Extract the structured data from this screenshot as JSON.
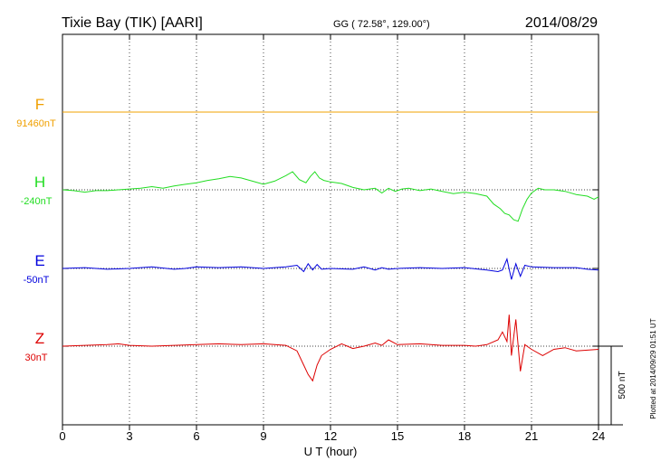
{
  "header": {
    "station": "Tixie Bay (TIK)  [AARI]",
    "coords": "GG ( 72.58°, 129.00°)",
    "date": "2014/08/29"
  },
  "footer": {
    "plotted": "Plotted at 2014/09/29 01:51  UT"
  },
  "chart_data": {
    "type": "line",
    "xlabel": "U T (hour)",
    "xlim": [
      0,
      24
    ],
    "xticks": [
      "0",
      "3",
      "6",
      "9",
      "12",
      "15",
      "18",
      "21",
      "24"
    ],
    "scale_bar": {
      "label": "500 nT",
      "value_nT": 500
    },
    "series": [
      {
        "name": "F",
        "baseline_label": "91460nT",
        "color": "#f0a000",
        "x": [
          0,
          24
        ],
        "y": [
          0,
          0
        ]
      },
      {
        "name": "H",
        "baseline_label": "-240nT",
        "color": "#22dd22",
        "x": [
          0,
          0.5,
          1,
          1.5,
          2,
          2.5,
          3,
          3.5,
          4,
          4.5,
          5,
          5.5,
          6,
          6.5,
          7,
          7.5,
          8,
          8.5,
          9,
          9.5,
          10,
          10.3,
          10.6,
          10.9,
          11.1,
          11.3,
          11.5,
          11.7,
          12,
          12.5,
          13,
          13.5,
          14,
          14.3,
          14.6,
          14.9,
          15.2,
          15.5,
          16,
          16.5,
          17,
          17.5,
          18,
          18.5,
          19,
          19.3,
          19.6,
          19.8,
          20.0,
          20.2,
          20.4,
          20.6,
          20.8,
          21.0,
          21.3,
          21.6,
          22,
          22.5,
          23,
          23.5,
          23.8,
          24
        ],
        "y": [
          0,
          -5,
          -15,
          -5,
          -5,
          0,
          5,
          10,
          20,
          10,
          25,
          35,
          45,
          60,
          70,
          85,
          75,
          55,
          35,
          55,
          90,
          115,
          65,
          45,
          85,
          115,
          75,
          60,
          50,
          40,
          15,
          0,
          10,
          -20,
          10,
          -10,
          5,
          10,
          -5,
          5,
          -10,
          -25,
          -15,
          -25,
          -40,
          -90,
          -120,
          -150,
          -160,
          -190,
          -200,
          -120,
          -60,
          -20,
          10,
          0,
          0,
          -10,
          -30,
          -40,
          -60,
          -45
        ]
      },
      {
        "name": "E",
        "baseline_label": "-50nT",
        "color": "#0000dd",
        "x": [
          0,
          1,
          2,
          3,
          4,
          5,
          5.5,
          6,
          7,
          8,
          9,
          10,
          10.5,
          10.8,
          11.0,
          11.2,
          11.4,
          11.6,
          12,
          13,
          13.5,
          14,
          14.3,
          14.6,
          15,
          16,
          17,
          18,
          19,
          19.5,
          19.7,
          19.9,
          20.1,
          20.3,
          20.5,
          20.7,
          21,
          22,
          23,
          23.5,
          24
        ],
        "y": [
          0,
          5,
          -5,
          0,
          10,
          -5,
          0,
          10,
          5,
          10,
          0,
          10,
          20,
          -20,
          30,
          -10,
          25,
          -5,
          0,
          -5,
          10,
          -10,
          5,
          -5,
          0,
          5,
          0,
          5,
          -10,
          -20,
          -10,
          60,
          -70,
          30,
          -50,
          20,
          10,
          5,
          5,
          -5,
          -10
        ]
      },
      {
        "name": "Z",
        "baseline_label": "30nT",
        "color": "#dd0000",
        "x": [
          0,
          1,
          2,
          2.5,
          3,
          4,
          5,
          6,
          7,
          8,
          9,
          10,
          10.5,
          10.8,
          11.0,
          11.2,
          11.4,
          11.6,
          12,
          12.5,
          13,
          13.5,
          14,
          14.3,
          14.6,
          15,
          16,
          17,
          18,
          18.5,
          19,
          19.5,
          19.7,
          19.9,
          20.0,
          20.1,
          20.3,
          20.5,
          20.7,
          21,
          21.5,
          22,
          22.5,
          23,
          23.5,
          24
        ],
        "y": [
          0,
          5,
          10,
          15,
          5,
          0,
          5,
          10,
          15,
          10,
          15,
          5,
          -30,
          -120,
          -180,
          -220,
          -120,
          -60,
          -20,
          15,
          -15,
          0,
          20,
          5,
          40,
          10,
          15,
          5,
          5,
          0,
          10,
          40,
          90,
          30,
          200,
          -60,
          170,
          -160,
          10,
          -20,
          -60,
          -20,
          -10,
          -30,
          -25,
          -20
        ]
      }
    ]
  }
}
